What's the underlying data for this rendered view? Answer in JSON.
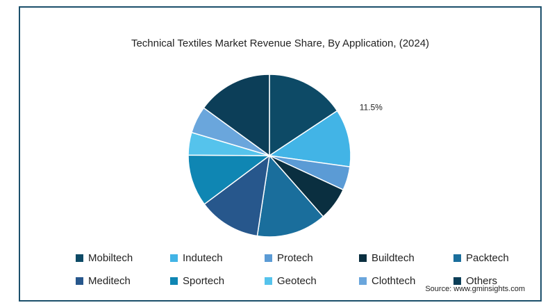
{
  "chart_data": {
    "type": "pie",
    "title": "Technical Textiles Market Revenue Share, By Application, (2024)",
    "categories": [
      "Mobiltech",
      "Indutech",
      "Protech",
      "Buildtech",
      "Packtech",
      "Meditech",
      "Sportech",
      "Geotech",
      "Clothtech",
      "Others"
    ],
    "values": [
      15.7,
      11.5,
      4.7,
      6.6,
      13.9,
      12.4,
      10.3,
      4.5,
      5.4,
      15.0
    ],
    "colors": [
      "#0d4a66",
      "#42b4e6",
      "#5b9bd5",
      "#0a2f40",
      "#1a6e9c",
      "#27578c",
      "#0f86b3",
      "#55c3ec",
      "#6aa6dc",
      "#0c3e58"
    ],
    "data_labels": [
      {
        "category": "Indutech",
        "text": "11.5%"
      }
    ],
    "legend_position": "bottom"
  },
  "source": "Source: www.gminsights.com"
}
